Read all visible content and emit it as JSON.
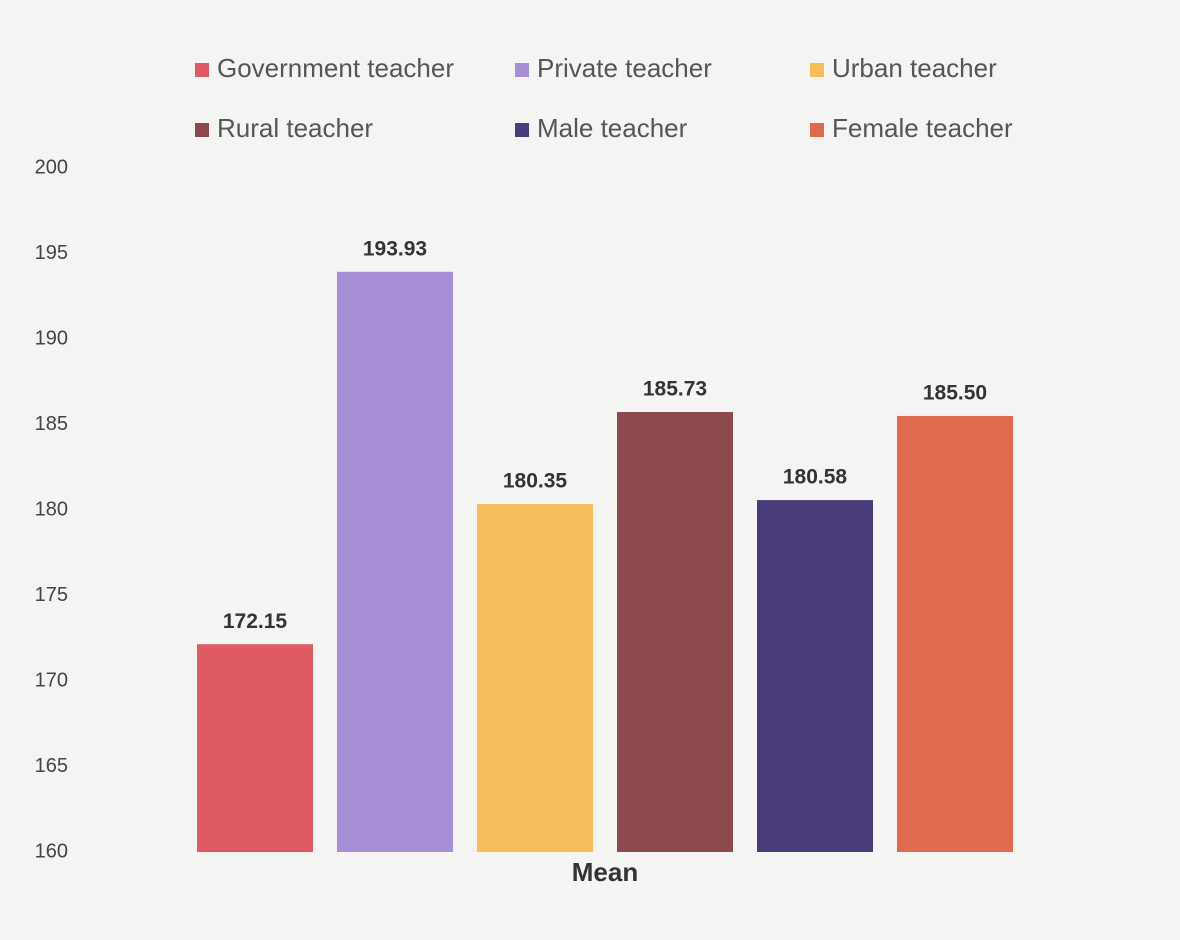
{
  "chart_data": {
    "type": "bar",
    "categories": [
      "Mean"
    ],
    "series": [
      {
        "name": "Government teacher",
        "color": "#e05a64",
        "values": [
          172.15
        ],
        "value_labels": [
          "172.15"
        ]
      },
      {
        "name": "Private teacher",
        "color": "#a78fd6",
        "values": [
          193.93
        ],
        "value_labels": [
          "193.93"
        ]
      },
      {
        "name": "Urban teacher",
        "color": "#f6bd5c",
        "values": [
          180.35
        ],
        "value_labels": [
          "180.35"
        ]
      },
      {
        "name": "Rural teacher",
        "color": "#8c4a4f",
        "values": [
          185.73
        ],
        "value_labels": [
          "185.73"
        ]
      },
      {
        "name": "Male teacher",
        "color": "#4a3b7a",
        "values": [
          180.58
        ],
        "value_labels": [
          "180.58"
        ]
      },
      {
        "name": "Female teacher",
        "color": "#df6a50",
        "values": [
          185.5
        ],
        "value_labels": [
          "185.50"
        ]
      }
    ],
    "ylim": [
      160,
      200
    ],
    "yticks": [
      160,
      165,
      170,
      175,
      180,
      185,
      190,
      195,
      200
    ],
    "grid": false
  }
}
